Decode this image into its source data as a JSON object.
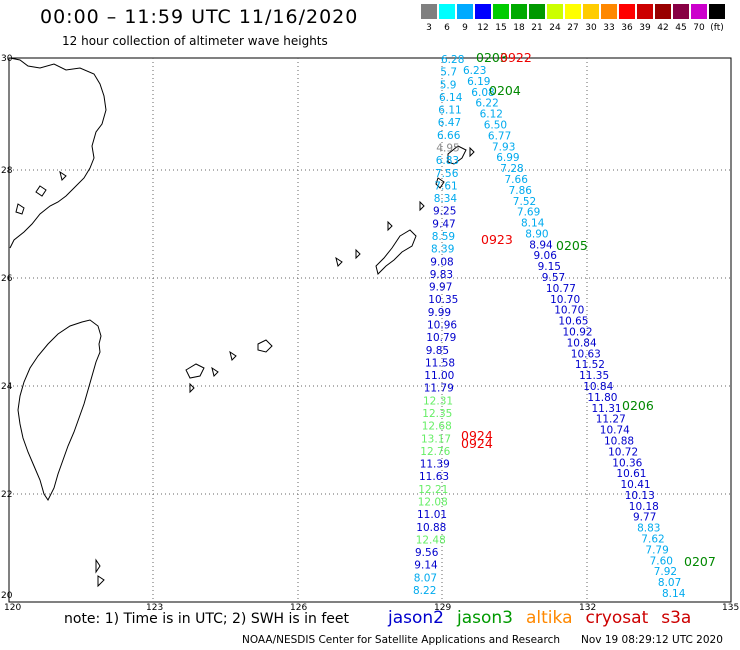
{
  "header": {
    "title": "00:00 – 11:59 UTC 11/16/2020",
    "subtitle": "12 hour collection of altimeter wave heights"
  },
  "legend": {
    "colors": [
      "#808080",
      "#00ffff",
      "#00aaff",
      "#0000ff",
      "#00cc00",
      "#00aa00",
      "#009900",
      "#ccff00",
      "#ffff00",
      "#ffcc00",
      "#ff8800",
      "#ff0000",
      "#cc0000",
      "#990000",
      "#880044",
      "#cc00cc",
      "#000000"
    ],
    "labels": [
      "3",
      "6",
      "9",
      "12",
      "15",
      "18",
      "21",
      "24",
      "27",
      "30",
      "33",
      "36",
      "39",
      "42",
      "45",
      "70",
      "(ft)"
    ]
  },
  "axes": {
    "lon_ticks": [
      "120",
      "123",
      "126",
      "129",
      "132",
      "135"
    ],
    "lat_ticks": [
      "30",
      "28",
      "26",
      "24",
      "22",
      "20"
    ]
  },
  "color_key": {
    "cyan": "#00aaee",
    "blue": "#0000cc",
    "light_green": "#66ee66",
    "green": "#008800",
    "red": "#ee0000",
    "gray": "#888888"
  },
  "pass_labels": [
    {
      "text": "0203",
      "color": "green"
    },
    {
      "text": "0922",
      "color": "red"
    },
    {
      "text": "0204",
      "color": "green"
    },
    {
      "text": "0923",
      "color": "red"
    },
    {
      "text": "0205",
      "color": "green"
    },
    {
      "text": "0924",
      "color": "red"
    },
    {
      "text": "0924",
      "color": "red"
    },
    {
      "text": "0206",
      "color": "green"
    },
    {
      "text": "0207",
      "color": "green"
    }
  ],
  "track_a": [
    {
      "v": "6.28",
      "c": "cyan"
    },
    {
      "v": "5.7",
      "c": "cyan"
    },
    {
      "v": "5.9",
      "c": "cyan"
    },
    {
      "v": "6.14",
      "c": "cyan"
    },
    {
      "v": "6.11",
      "c": "cyan"
    },
    {
      "v": "6.47",
      "c": "cyan"
    },
    {
      "v": "6.66",
      "c": "cyan"
    },
    {
      "v": "4.95",
      "c": "gray"
    },
    {
      "v": "6.83",
      "c": "cyan"
    },
    {
      "v": "7.56",
      "c": "cyan"
    },
    {
      "v": "7.61",
      "c": "cyan"
    },
    {
      "v": "8.34",
      "c": "cyan"
    },
    {
      "v": "9.25",
      "c": "blue"
    },
    {
      "v": "9.47",
      "c": "blue"
    },
    {
      "v": "8.59",
      "c": "cyan"
    },
    {
      "v": "8.39",
      "c": "cyan"
    },
    {
      "v": "9.08",
      "c": "blue"
    },
    {
      "v": "9.83",
      "c": "blue"
    },
    {
      "v": "9.97",
      "c": "blue"
    },
    {
      "v": "10.35",
      "c": "blue"
    },
    {
      "v": "9.99",
      "c": "blue"
    },
    {
      "v": "10.96",
      "c": "blue"
    },
    {
      "v": "10.79",
      "c": "blue"
    },
    {
      "v": "9.85",
      "c": "blue"
    },
    {
      "v": "11.58",
      "c": "blue"
    },
    {
      "v": "11.00",
      "c": "blue"
    },
    {
      "v": "11.79",
      "c": "blue"
    },
    {
      "v": "12.31",
      "c": "light_green"
    },
    {
      "v": "12.35",
      "c": "light_green"
    },
    {
      "v": "12.68",
      "c": "light_green"
    },
    {
      "v": "13.17",
      "c": "light_green"
    },
    {
      "v": "12.76",
      "c": "light_green"
    },
    {
      "v": "11.39",
      "c": "blue"
    },
    {
      "v": "11.63",
      "c": "blue"
    },
    {
      "v": "12.21",
      "c": "light_green"
    },
    {
      "v": "12.08",
      "c": "light_green"
    },
    {
      "v": "11.01",
      "c": "blue"
    },
    {
      "v": "10.88",
      "c": "blue"
    },
    {
      "v": "12.48",
      "c": "light_green"
    },
    {
      "v": "9.56",
      "c": "blue"
    },
    {
      "v": "9.14",
      "c": "blue"
    },
    {
      "v": "8.07",
      "c": "cyan"
    },
    {
      "v": "8.22",
      "c": "cyan"
    }
  ],
  "track_b": [
    {
      "v": "6.23",
      "c": "cyan"
    },
    {
      "v": "6.19",
      "c": "cyan"
    },
    {
      "v": "6.08",
      "c": "cyan"
    },
    {
      "v": "6.22",
      "c": "cyan"
    },
    {
      "v": "6.12",
      "c": "cyan"
    },
    {
      "v": "6.50",
      "c": "cyan"
    },
    {
      "v": "6.77",
      "c": "cyan"
    },
    {
      "v": "7.93",
      "c": "cyan"
    },
    {
      "v": "6.99",
      "c": "cyan"
    },
    {
      "v": "7.28",
      "c": "cyan"
    },
    {
      "v": "7.66",
      "c": "cyan"
    },
    {
      "v": "7.86",
      "c": "cyan"
    },
    {
      "v": "7.52",
      "c": "cyan"
    },
    {
      "v": "7.69",
      "c": "cyan"
    },
    {
      "v": "8.14",
      "c": "cyan"
    },
    {
      "v": "8.90",
      "c": "cyan"
    },
    {
      "v": "8.94",
      "c": "blue"
    },
    {
      "v": "9.06",
      "c": "blue"
    },
    {
      "v": "9.15",
      "c": "blue"
    },
    {
      "v": "9.57",
      "c": "blue"
    },
    {
      "v": "10.77",
      "c": "blue"
    },
    {
      "v": "10.70",
      "c": "blue"
    },
    {
      "v": "10.70",
      "c": "blue"
    },
    {
      "v": "10.65",
      "c": "blue"
    },
    {
      "v": "10.92",
      "c": "blue"
    },
    {
      "v": "10.84",
      "c": "blue"
    },
    {
      "v": "10.63",
      "c": "blue"
    },
    {
      "v": "11.52",
      "c": "blue"
    },
    {
      "v": "11.35",
      "c": "blue"
    },
    {
      "v": "10.84",
      "c": "blue"
    },
    {
      "v": "11.80",
      "c": "blue"
    },
    {
      "v": "11.31",
      "c": "blue"
    },
    {
      "v": "11.27",
      "c": "blue"
    },
    {
      "v": "10.74",
      "c": "blue"
    },
    {
      "v": "10.88",
      "c": "blue"
    },
    {
      "v": "10.72",
      "c": "blue"
    },
    {
      "v": "10.36",
      "c": "blue"
    },
    {
      "v": "10.61",
      "c": "blue"
    },
    {
      "v": "10.41",
      "c": "blue"
    },
    {
      "v": "10.13",
      "c": "blue"
    },
    {
      "v": "10.18",
      "c": "blue"
    },
    {
      "v": "9.77",
      "c": "blue"
    },
    {
      "v": "8.83",
      "c": "cyan"
    },
    {
      "v": "7.62",
      "c": "cyan"
    },
    {
      "v": "7.79",
      "c": "cyan"
    },
    {
      "v": "7.60",
      "c": "cyan"
    },
    {
      "v": "7.92",
      "c": "cyan"
    },
    {
      "v": "8.07",
      "c": "cyan"
    },
    {
      "v": "8.14",
      "c": "cyan"
    }
  ],
  "footer": {
    "note": "note: 1) Time is in UTC; 2) SWH is in feet",
    "satellites": [
      {
        "name": "jason2",
        "color": "#0000cc"
      },
      {
        "name": "jason3",
        "color": "#009900"
      },
      {
        "name": "altika",
        "color": "#ff8800"
      },
      {
        "name": "cryosat",
        "color": "#cc0000"
      },
      {
        "name": "s3a",
        "color": "#cc0000"
      }
    ],
    "credit": "NOAA/NESDIS Center for Satellite Applications and Research",
    "date": "Nov 19 08:29:12 UTC 2020"
  }
}
